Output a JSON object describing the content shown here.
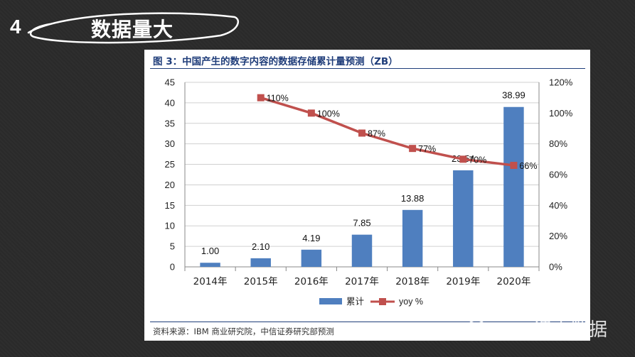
{
  "slide": {
    "section_number": "4",
    "section_title": "数据量大",
    "watermark": "PPV课大数据"
  },
  "figure": {
    "title": "图 3：中国产生的数字内容的数据存储累计量预测（ZB）",
    "source": "资料来源：IBM 商业研究院，中信证券研究部预测"
  },
  "colors": {
    "bar": "#4f7fbf",
    "line": "#c0504d",
    "panel_rule": "#1f3d7a"
  },
  "chart_data": {
    "type": "bar+line",
    "categories": [
      "2014年",
      "2015年",
      "2016年",
      "2017年",
      "2018年",
      "2019年",
      "2020年"
    ],
    "series": [
      {
        "name": "累计",
        "type": "bar",
        "axis": "left",
        "values": [
          1.0,
          2.1,
          4.19,
          7.85,
          13.88,
          23.54,
          38.99
        ],
        "labels": [
          "1.00",
          "2.10",
          "4.19",
          "7.85",
          "13.88",
          "23.54",
          "38.99"
        ]
      },
      {
        "name": "yoy %",
        "type": "line",
        "axis": "right",
        "values": [
          null,
          110,
          100,
          87,
          77,
          70,
          66
        ],
        "labels": [
          "",
          "110%",
          "100%",
          "87%",
          "77%",
          "70%",
          "66%"
        ]
      }
    ],
    "y_left": {
      "min": 0,
      "max": 45,
      "ticks": [
        "0",
        "5",
        "10",
        "15",
        "20",
        "25",
        "30",
        "35",
        "40",
        "45"
      ]
    },
    "y_right": {
      "min": 0,
      "max": 120,
      "ticks": [
        "0%",
        "20%",
        "40%",
        "60%",
        "80%",
        "100%",
        "120%"
      ]
    },
    "legend": [
      "累计",
      "yoy %"
    ],
    "legend_position": "bottom-center"
  }
}
